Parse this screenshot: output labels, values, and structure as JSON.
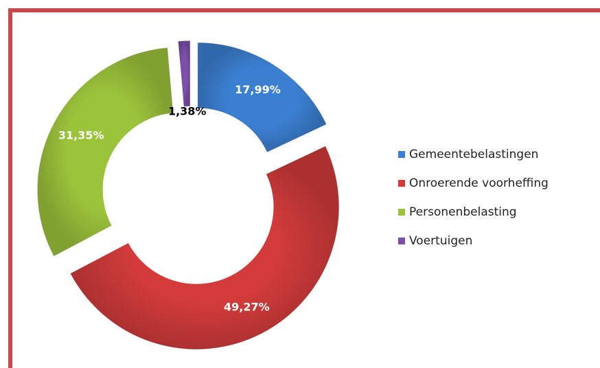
{
  "chart_data": {
    "type": "donut",
    "categories": [
      "Gemeentebelastingen",
      "Onroerende voorheffing",
      "Personenbelasting",
      "Voertuigen"
    ],
    "values": [
      17.99,
      49.27,
      31.35,
      1.38
    ],
    "value_labels": [
      "17,99%",
      "49,27%",
      "31,35%",
      "1,38%"
    ],
    "colors": [
      "#3b7fd1",
      "#d33b3b",
      "#9cc43b",
      "#7e4fa9"
    ],
    "legend": "right"
  }
}
